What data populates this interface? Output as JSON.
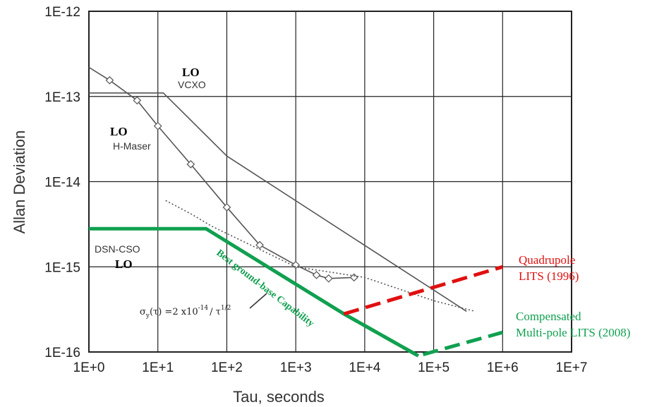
{
  "chart_data": {
    "type": "line",
    "xlabel": "Tau, seconds",
    "ylabel": "Allan Deviation",
    "x_scale": "log",
    "y_scale": "log",
    "xlim": [
      1,
      10000000
    ],
    "ylim": [
      1e-16,
      1e-12
    ],
    "grid": true,
    "x_ticks": [
      "1E+0",
      "1E+1",
      "1E+2",
      "1E+3",
      "1E+4",
      "1E+5",
      "1E+6",
      "1E+7"
    ],
    "y_ticks": [
      "1E-12",
      "1E-13",
      "1E-14",
      "1E-15",
      "1E-16"
    ],
    "series": [
      {
        "label_top": "LO",
        "label_bottom": "VCXO",
        "color": "#555555",
        "style": "solid",
        "points": [
          [
            1,
            1.1e-13
          ],
          [
            12,
            1.1e-13
          ],
          [
            100,
            2e-14
          ],
          [
            300000,
            3e-16
          ]
        ]
      },
      {
        "label_top": "LO",
        "label_bottom": "H-Maser",
        "color": "#555555",
        "style": "solid",
        "markers": "diamond",
        "points": [
          [
            1,
            2.2e-13
          ],
          [
            2,
            1.55e-13
          ],
          [
            5,
            9e-14
          ],
          [
            10,
            4.5e-14
          ],
          [
            30,
            1.6e-14
          ],
          [
            100,
            5e-15
          ],
          [
            300,
            1.8e-15
          ],
          [
            1000,
            1.05e-15
          ],
          [
            2000,
            8e-16
          ],
          [
            3000,
            7.3e-16
          ],
          [
            7000,
            7.5e-16
          ]
        ]
      },
      {
        "label_top": "DSN-CSO",
        "label_bottom": "LO",
        "color": "#555555",
        "style": "dotted",
        "points": [
          [
            13,
            6e-15
          ],
          [
            30,
            4.2e-15
          ],
          [
            60,
            3e-15
          ],
          [
            300,
            1.6e-15
          ],
          [
            1000,
            1e-15
          ],
          [
            10000,
            7.5e-16
          ],
          [
            100000,
            4e-16
          ],
          [
            400000,
            3e-16
          ]
        ]
      },
      {
        "name": "Best ground-base Capability",
        "color": "#10a050",
        "style": "solid",
        "points": [
          [
            1,
            2.8e-15
          ],
          [
            50,
            2.8e-15
          ],
          [
            5000,
            2.8e-16
          ],
          [
            60000,
            9e-17
          ]
        ]
      },
      {
        "color": "#10a050",
        "style": "dashed",
        "points": [
          [
            5000,
            2.8e-16
          ],
          [
            60000,
            9e-17
          ],
          [
            1000000,
            1.7e-16
          ]
        ]
      },
      {
        "color": "#e01010",
        "style": "dashed",
        "points": [
          [
            5000,
            2.8e-16
          ],
          [
            1000000,
            1e-15
          ]
        ]
      }
    ],
    "annotations": {
      "equation_main": "σ",
      "equation_sub": "y",
      "equation_mid": "(τ) =2 x10",
      "equation_exp": "-14",
      "equation_div": "/ τ",
      "equation_pow": "1/2",
      "band_label": "Best ground-base Capability",
      "quad_line1": "Quadrupole",
      "quad_line2": "LITS (1996)",
      "comp_line1": "Compensated",
      "comp_line2": "Multi-pole LITS (2008)"
    }
  }
}
